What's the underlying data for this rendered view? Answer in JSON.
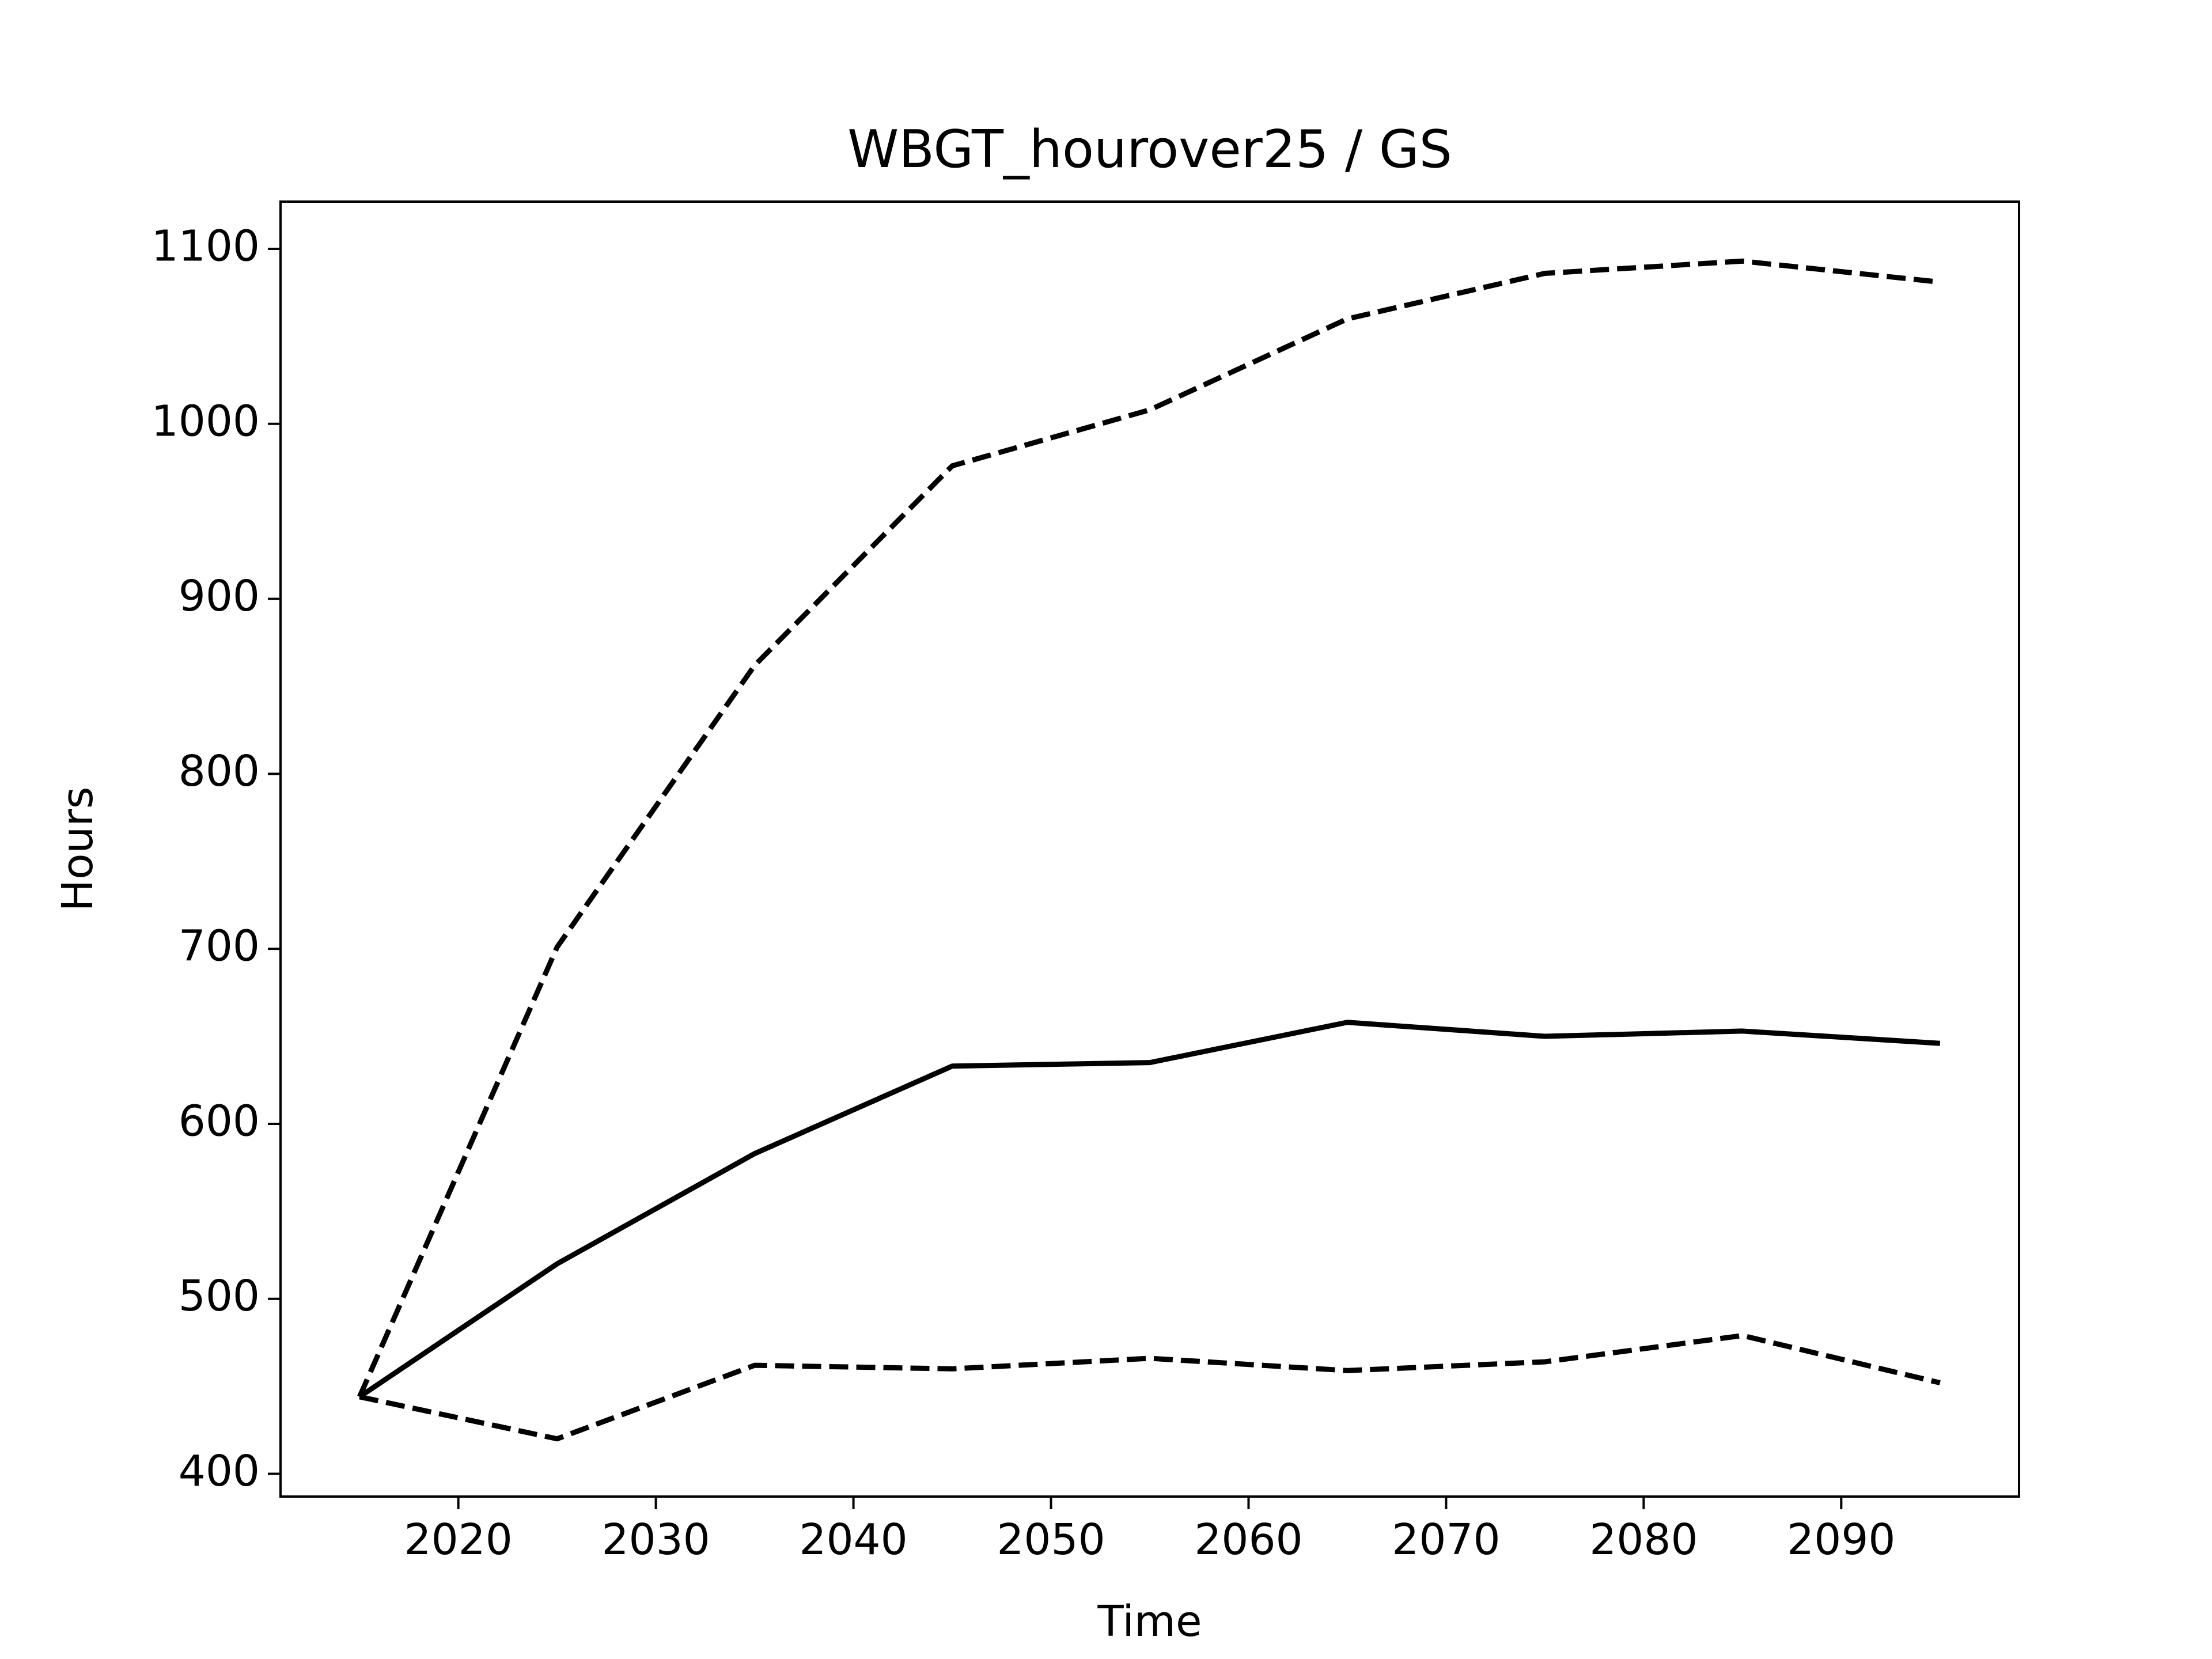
{
  "chart_data": {
    "type": "line",
    "title": "WBGT_hourover25 / GS",
    "xlabel": "Time",
    "ylabel": "Hours",
    "x": [
      2015,
      2025,
      2035,
      2045,
      2055,
      2065,
      2075,
      2085,
      2095
    ],
    "series": [
      {
        "color": "#000000",
        "dashed": false,
        "values": [
          444,
          520,
          583,
          633,
          635,
          658,
          650,
          653,
          646
        ]
      },
      {
        "color": "#000000",
        "dashed": true,
        "values": [
          444,
          701,
          862,
          976,
          1008,
          1060,
          1086,
          1093,
          1081
        ]
      },
      {
        "color": "#000000",
        "dashed": true,
        "values": [
          444,
          420,
          462,
          460,
          466,
          459,
          464,
          479,
          452
        ]
      }
    ],
    "xlim": [
      2011,
      2099
    ],
    "xticks": [
      2020,
      2030,
      2040,
      2050,
      2060,
      2070,
      2080,
      2090
    ],
    "ylim": [
      387,
      1127
    ],
    "yticks": [
      400,
      500,
      600,
      700,
      800,
      900,
      1000,
      1100
    ],
    "grid": false
  }
}
